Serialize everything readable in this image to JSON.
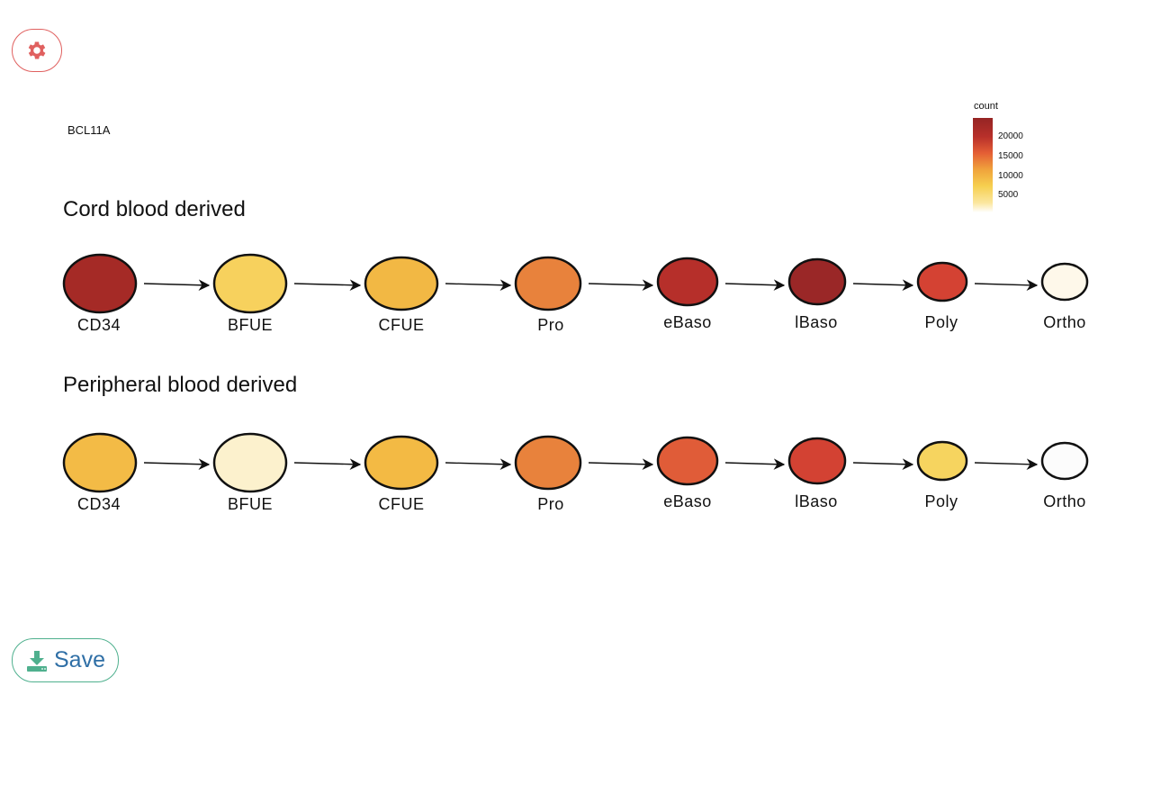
{
  "controls": {
    "settings_icon": "gear-icon",
    "save_icon": "download-icon",
    "save_label": "Save",
    "settings_color": "#e0605f",
    "save_border_color": "#4fb08e"
  },
  "figure": {
    "gene": "BCL11A",
    "legend": {
      "title": "count",
      "ticks": [
        "20000",
        "15000",
        "10000",
        "5000"
      ]
    },
    "sections": [
      {
        "title": "Cord blood derived",
        "stages": [
          {
            "label": "CD34",
            "fill": "#a52a26"
          },
          {
            "label": "BFUE",
            "fill": "#f7d15d"
          },
          {
            "label": "CFUE",
            "fill": "#f2b844"
          },
          {
            "label": "Pro",
            "fill": "#e8823c"
          },
          {
            "label": "eBaso",
            "fill": "#b62f2a"
          },
          {
            "label": "lBaso",
            "fill": "#9a2727"
          },
          {
            "label": "Poly",
            "fill": "#d44233"
          },
          {
            "label": "Ortho",
            "fill": "#fef8ea"
          }
        ]
      },
      {
        "title": "Peripheral blood derived",
        "stages": [
          {
            "label": "CD34",
            "fill": "#f3bb46"
          },
          {
            "label": "BFUE",
            "fill": "#fcf1cd"
          },
          {
            "label": "CFUE",
            "fill": "#f3ba44"
          },
          {
            "label": "Pro",
            "fill": "#e8823c"
          },
          {
            "label": "eBaso",
            "fill": "#e05c38"
          },
          {
            "label": "lBaso",
            "fill": "#d34233"
          },
          {
            "label": "Poly",
            "fill": "#f6d45f"
          },
          {
            "label": "Ortho",
            "fill": "#fcfcfc"
          }
        ]
      }
    ]
  }
}
